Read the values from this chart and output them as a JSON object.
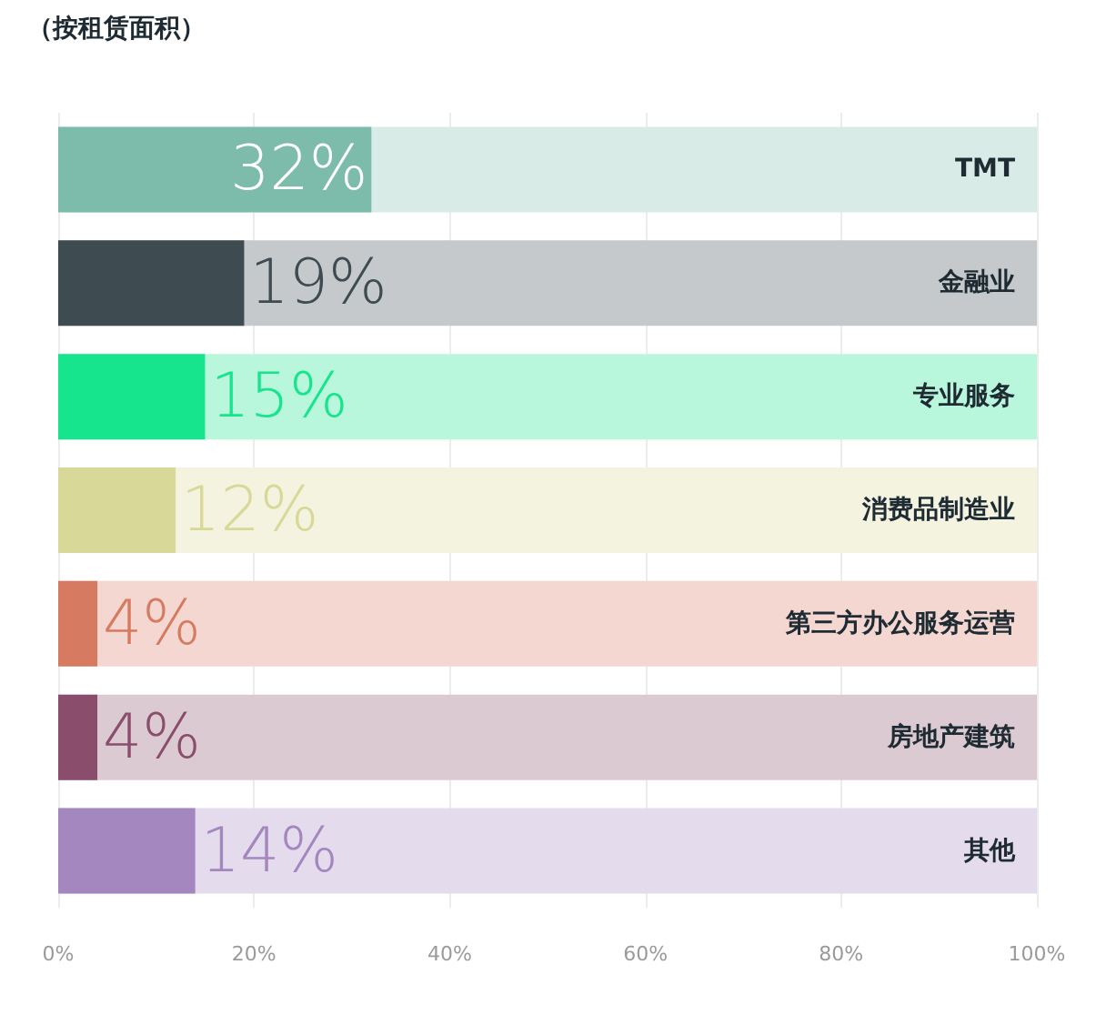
{
  "chart_data": {
    "type": "bar",
    "orientation": "horizontal",
    "title": "（按租赁面积）",
    "categories": [
      "TMT",
      "金融业",
      "专业服务",
      "消费品制造业",
      "第三方办公服务运营",
      "房地产建筑",
      "其他"
    ],
    "values": [
      32,
      19,
      15,
      12,
      4,
      4,
      14
    ],
    "value_labels": [
      "32%",
      "19%",
      "15%",
      "12%",
      "4%",
      "4%",
      "14%"
    ],
    "colors": [
      "#7dbbaa",
      "#3e4b50",
      "#16e58e",
      "#d8d898",
      "#d77a62",
      "#8a4e6c",
      "#a487bf"
    ],
    "xlim": [
      0,
      100
    ],
    "xticks": [
      {
        "value": 0,
        "label": "0%"
      },
      {
        "value": 20,
        "label": "20%"
      },
      {
        "value": 40,
        "label": "40%"
      },
      {
        "value": 60,
        "label": "60%"
      },
      {
        "value": 80,
        "label": "80%"
      },
      {
        "value": 100,
        "label": "100%"
      }
    ],
    "grid": "x"
  }
}
